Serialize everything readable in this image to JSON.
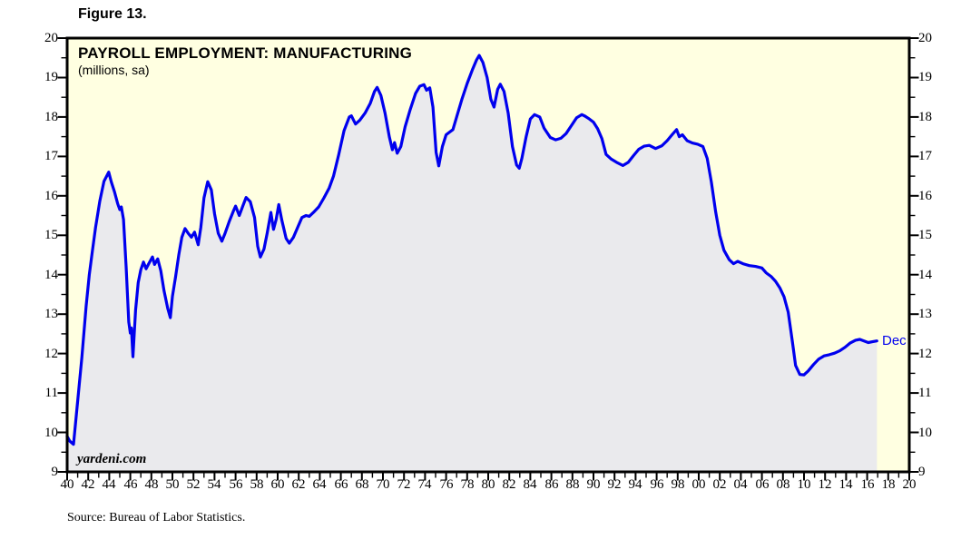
{
  "figure_label": "Figure 13.",
  "title": "PAYROLL EMPLOYMENT: MANUFACTURING",
  "subtitle": "(millions, sa)",
  "watermark": "yardeni.com",
  "source_note": "Source: Bureau of Labor Statistics.",
  "end_label": "Dec",
  "colors": {
    "plot_background": "#FFFFE1",
    "area_fill": "#EAEAED",
    "line": "#0000EE",
    "axis": "#000000",
    "text": "#000000",
    "end_label_color": "#0000EE"
  },
  "chart_data": {
    "type": "line",
    "title": "PAYROLL EMPLOYMENT: MANUFACTURING",
    "subtitle": "(millions, sa)",
    "grid": false,
    "legend": "none",
    "area_fill": true,
    "x_axis": {
      "min": 1940,
      "max": 2020,
      "major_tick_every_years": 2,
      "minor_tick_every_years": 1,
      "tick_labels": [
        "40",
        "42",
        "44",
        "46",
        "48",
        "50",
        "52",
        "54",
        "56",
        "58",
        "60",
        "62",
        "64",
        "66",
        "68",
        "70",
        "72",
        "74",
        "76",
        "78",
        "80",
        "82",
        "84",
        "86",
        "88",
        "90",
        "92",
        "94",
        "96",
        "98",
        "00",
        "02",
        "04",
        "06",
        "08",
        "10",
        "12",
        "14",
        "16",
        "18",
        "20"
      ]
    },
    "y_axis": {
      "min": 9,
      "max": 20,
      "major_tick_interval": 1,
      "minor_tick_interval": 0.5,
      "mirrored_right_axis": true,
      "tick_labels": [
        "9",
        "10",
        "11",
        "12",
        "13",
        "14",
        "15",
        "16",
        "17",
        "18",
        "19",
        "20"
      ]
    },
    "series": [
      {
        "name": "Manufacturing payroll employment (millions, seasonally adjusted)",
        "last_point_label": "Dec",
        "points": [
          [
            1940.0,
            9.9
          ],
          [
            1940.25,
            9.78
          ],
          [
            1940.6,
            9.7
          ],
          [
            1941.0,
            10.8
          ],
          [
            1941.4,
            11.9
          ],
          [
            1941.8,
            13.2
          ],
          [
            1942.1,
            14.0
          ],
          [
            1942.4,
            14.6
          ],
          [
            1942.7,
            15.2
          ],
          [
            1943.1,
            15.87
          ],
          [
            1943.5,
            16.37
          ],
          [
            1943.95,
            16.6
          ],
          [
            1944.2,
            16.35
          ],
          [
            1944.5,
            16.1
          ],
          [
            1944.8,
            15.8
          ],
          [
            1945.0,
            15.65
          ],
          [
            1945.15,
            15.72
          ],
          [
            1945.35,
            15.4
          ],
          [
            1945.6,
            14.2
          ],
          [
            1945.85,
            12.8
          ],
          [
            1946.0,
            12.52
          ],
          [
            1946.1,
            12.65
          ],
          [
            1946.25,
            11.92
          ],
          [
            1946.5,
            13.1
          ],
          [
            1946.75,
            13.8
          ],
          [
            1947.0,
            14.13
          ],
          [
            1947.25,
            14.32
          ],
          [
            1947.5,
            14.15
          ],
          [
            1947.75,
            14.28
          ],
          [
            1948.1,
            14.45
          ],
          [
            1948.3,
            14.26
          ],
          [
            1948.6,
            14.4
          ],
          [
            1948.9,
            14.1
          ],
          [
            1949.2,
            13.6
          ],
          [
            1949.55,
            13.15
          ],
          [
            1949.8,
            12.91
          ],
          [
            1950.0,
            13.45
          ],
          [
            1950.3,
            13.95
          ],
          [
            1950.6,
            14.5
          ],
          [
            1950.9,
            14.95
          ],
          [
            1951.2,
            15.17
          ],
          [
            1951.5,
            15.05
          ],
          [
            1951.8,
            14.95
          ],
          [
            1952.1,
            15.08
          ],
          [
            1952.45,
            14.76
          ],
          [
            1952.7,
            15.2
          ],
          [
            1953.0,
            15.95
          ],
          [
            1953.35,
            16.36
          ],
          [
            1953.7,
            16.15
          ],
          [
            1954.0,
            15.55
          ],
          [
            1954.35,
            15.05
          ],
          [
            1954.7,
            14.85
          ],
          [
            1955.0,
            15.05
          ],
          [
            1955.4,
            15.35
          ],
          [
            1955.8,
            15.62
          ],
          [
            1956.0,
            15.74
          ],
          [
            1956.35,
            15.5
          ],
          [
            1956.7,
            15.75
          ],
          [
            1957.0,
            15.96
          ],
          [
            1957.4,
            15.85
          ],
          [
            1957.8,
            15.45
          ],
          [
            1958.1,
            14.72
          ],
          [
            1958.35,
            14.45
          ],
          [
            1958.7,
            14.65
          ],
          [
            1959.0,
            15.05
          ],
          [
            1959.35,
            15.58
          ],
          [
            1959.6,
            15.15
          ],
          [
            1959.85,
            15.4
          ],
          [
            1960.1,
            15.78
          ],
          [
            1960.4,
            15.38
          ],
          [
            1960.8,
            14.92
          ],
          [
            1961.1,
            14.8
          ],
          [
            1961.5,
            14.95
          ],
          [
            1961.9,
            15.2
          ],
          [
            1962.3,
            15.45
          ],
          [
            1962.7,
            15.5
          ],
          [
            1963.0,
            15.48
          ],
          [
            1963.4,
            15.58
          ],
          [
            1963.9,
            15.72
          ],
          [
            1964.4,
            15.95
          ],
          [
            1964.9,
            16.2
          ],
          [
            1965.3,
            16.5
          ],
          [
            1965.8,
            17.05
          ],
          [
            1966.3,
            17.65
          ],
          [
            1966.8,
            18.0
          ],
          [
            1967.0,
            18.03
          ],
          [
            1967.4,
            17.82
          ],
          [
            1967.8,
            17.92
          ],
          [
            1968.3,
            18.1
          ],
          [
            1968.8,
            18.35
          ],
          [
            1969.2,
            18.65
          ],
          [
            1969.45,
            18.75
          ],
          [
            1969.8,
            18.55
          ],
          [
            1970.2,
            18.1
          ],
          [
            1970.6,
            17.5
          ],
          [
            1970.9,
            17.17
          ],
          [
            1971.1,
            17.35
          ],
          [
            1971.35,
            17.08
          ],
          [
            1971.7,
            17.25
          ],
          [
            1972.1,
            17.75
          ],
          [
            1972.6,
            18.2
          ],
          [
            1973.1,
            18.6
          ],
          [
            1973.5,
            18.78
          ],
          [
            1973.9,
            18.82
          ],
          [
            1974.15,
            18.68
          ],
          [
            1974.45,
            18.74
          ],
          [
            1974.75,
            18.25
          ],
          [
            1975.05,
            17.1
          ],
          [
            1975.3,
            16.76
          ],
          [
            1975.65,
            17.25
          ],
          [
            1976.0,
            17.55
          ],
          [
            1976.35,
            17.62
          ],
          [
            1976.65,
            17.68
          ],
          [
            1977.0,
            18.0
          ],
          [
            1977.5,
            18.45
          ],
          [
            1978.0,
            18.85
          ],
          [
            1978.5,
            19.2
          ],
          [
            1978.9,
            19.45
          ],
          [
            1979.15,
            19.56
          ],
          [
            1979.5,
            19.38
          ],
          [
            1979.9,
            19.0
          ],
          [
            1980.25,
            18.45
          ],
          [
            1980.55,
            18.25
          ],
          [
            1980.9,
            18.7
          ],
          [
            1981.15,
            18.83
          ],
          [
            1981.5,
            18.65
          ],
          [
            1981.9,
            18.1
          ],
          [
            1982.3,
            17.25
          ],
          [
            1982.7,
            16.78
          ],
          [
            1982.95,
            16.7
          ],
          [
            1983.2,
            16.95
          ],
          [
            1983.6,
            17.5
          ],
          [
            1984.0,
            17.95
          ],
          [
            1984.4,
            18.06
          ],
          [
            1984.9,
            18.0
          ],
          [
            1985.3,
            17.72
          ],
          [
            1985.9,
            17.48
          ],
          [
            1986.4,
            17.42
          ],
          [
            1986.9,
            17.46
          ],
          [
            1987.4,
            17.58
          ],
          [
            1987.9,
            17.78
          ],
          [
            1988.4,
            17.98
          ],
          [
            1988.9,
            18.06
          ],
          [
            1989.2,
            18.02
          ],
          [
            1989.6,
            17.95
          ],
          [
            1990.0,
            17.87
          ],
          [
            1990.4,
            17.7
          ],
          [
            1990.8,
            17.45
          ],
          [
            1991.2,
            17.05
          ],
          [
            1991.7,
            16.93
          ],
          [
            1992.2,
            16.85
          ],
          [
            1992.8,
            16.77
          ],
          [
            1993.3,
            16.85
          ],
          [
            1993.8,
            17.02
          ],
          [
            1994.3,
            17.18
          ],
          [
            1994.8,
            17.26
          ],
          [
            1995.3,
            17.28
          ],
          [
            1995.9,
            17.2
          ],
          [
            1996.5,
            17.27
          ],
          [
            1997.0,
            17.4
          ],
          [
            1997.5,
            17.56
          ],
          [
            1997.9,
            17.68
          ],
          [
            1998.15,
            17.5
          ],
          [
            1998.45,
            17.55
          ],
          [
            1998.9,
            17.4
          ],
          [
            1999.4,
            17.34
          ],
          [
            1999.9,
            17.31
          ],
          [
            2000.4,
            17.25
          ],
          [
            2000.8,
            16.95
          ],
          [
            2001.2,
            16.35
          ],
          [
            2001.6,
            15.6
          ],
          [
            2002.0,
            15.0
          ],
          [
            2002.4,
            14.62
          ],
          [
            2002.9,
            14.38
          ],
          [
            2003.3,
            14.28
          ],
          [
            2003.7,
            14.34
          ],
          [
            2004.2,
            14.28
          ],
          [
            2004.8,
            14.23
          ],
          [
            2005.4,
            14.21
          ],
          [
            2006.0,
            14.17
          ],
          [
            2006.4,
            14.05
          ],
          [
            2006.9,
            13.95
          ],
          [
            2007.3,
            13.83
          ],
          [
            2007.7,
            13.67
          ],
          [
            2008.1,
            13.44
          ],
          [
            2008.5,
            13.05
          ],
          [
            2008.9,
            12.3
          ],
          [
            2009.2,
            11.7
          ],
          [
            2009.6,
            11.47
          ],
          [
            2010.0,
            11.46
          ],
          [
            2010.4,
            11.56
          ],
          [
            2010.9,
            11.72
          ],
          [
            2011.4,
            11.86
          ],
          [
            2011.9,
            11.94
          ],
          [
            2012.4,
            11.97
          ],
          [
            2012.9,
            12.01
          ],
          [
            2013.4,
            12.07
          ],
          [
            2013.9,
            12.16
          ],
          [
            2014.4,
            12.27
          ],
          [
            2014.9,
            12.34
          ],
          [
            2015.3,
            12.36
          ],
          [
            2015.7,
            12.32
          ],
          [
            2016.1,
            12.28
          ],
          [
            2016.5,
            12.3
          ],
          [
            2016.92,
            12.32
          ]
        ]
      }
    ]
  }
}
